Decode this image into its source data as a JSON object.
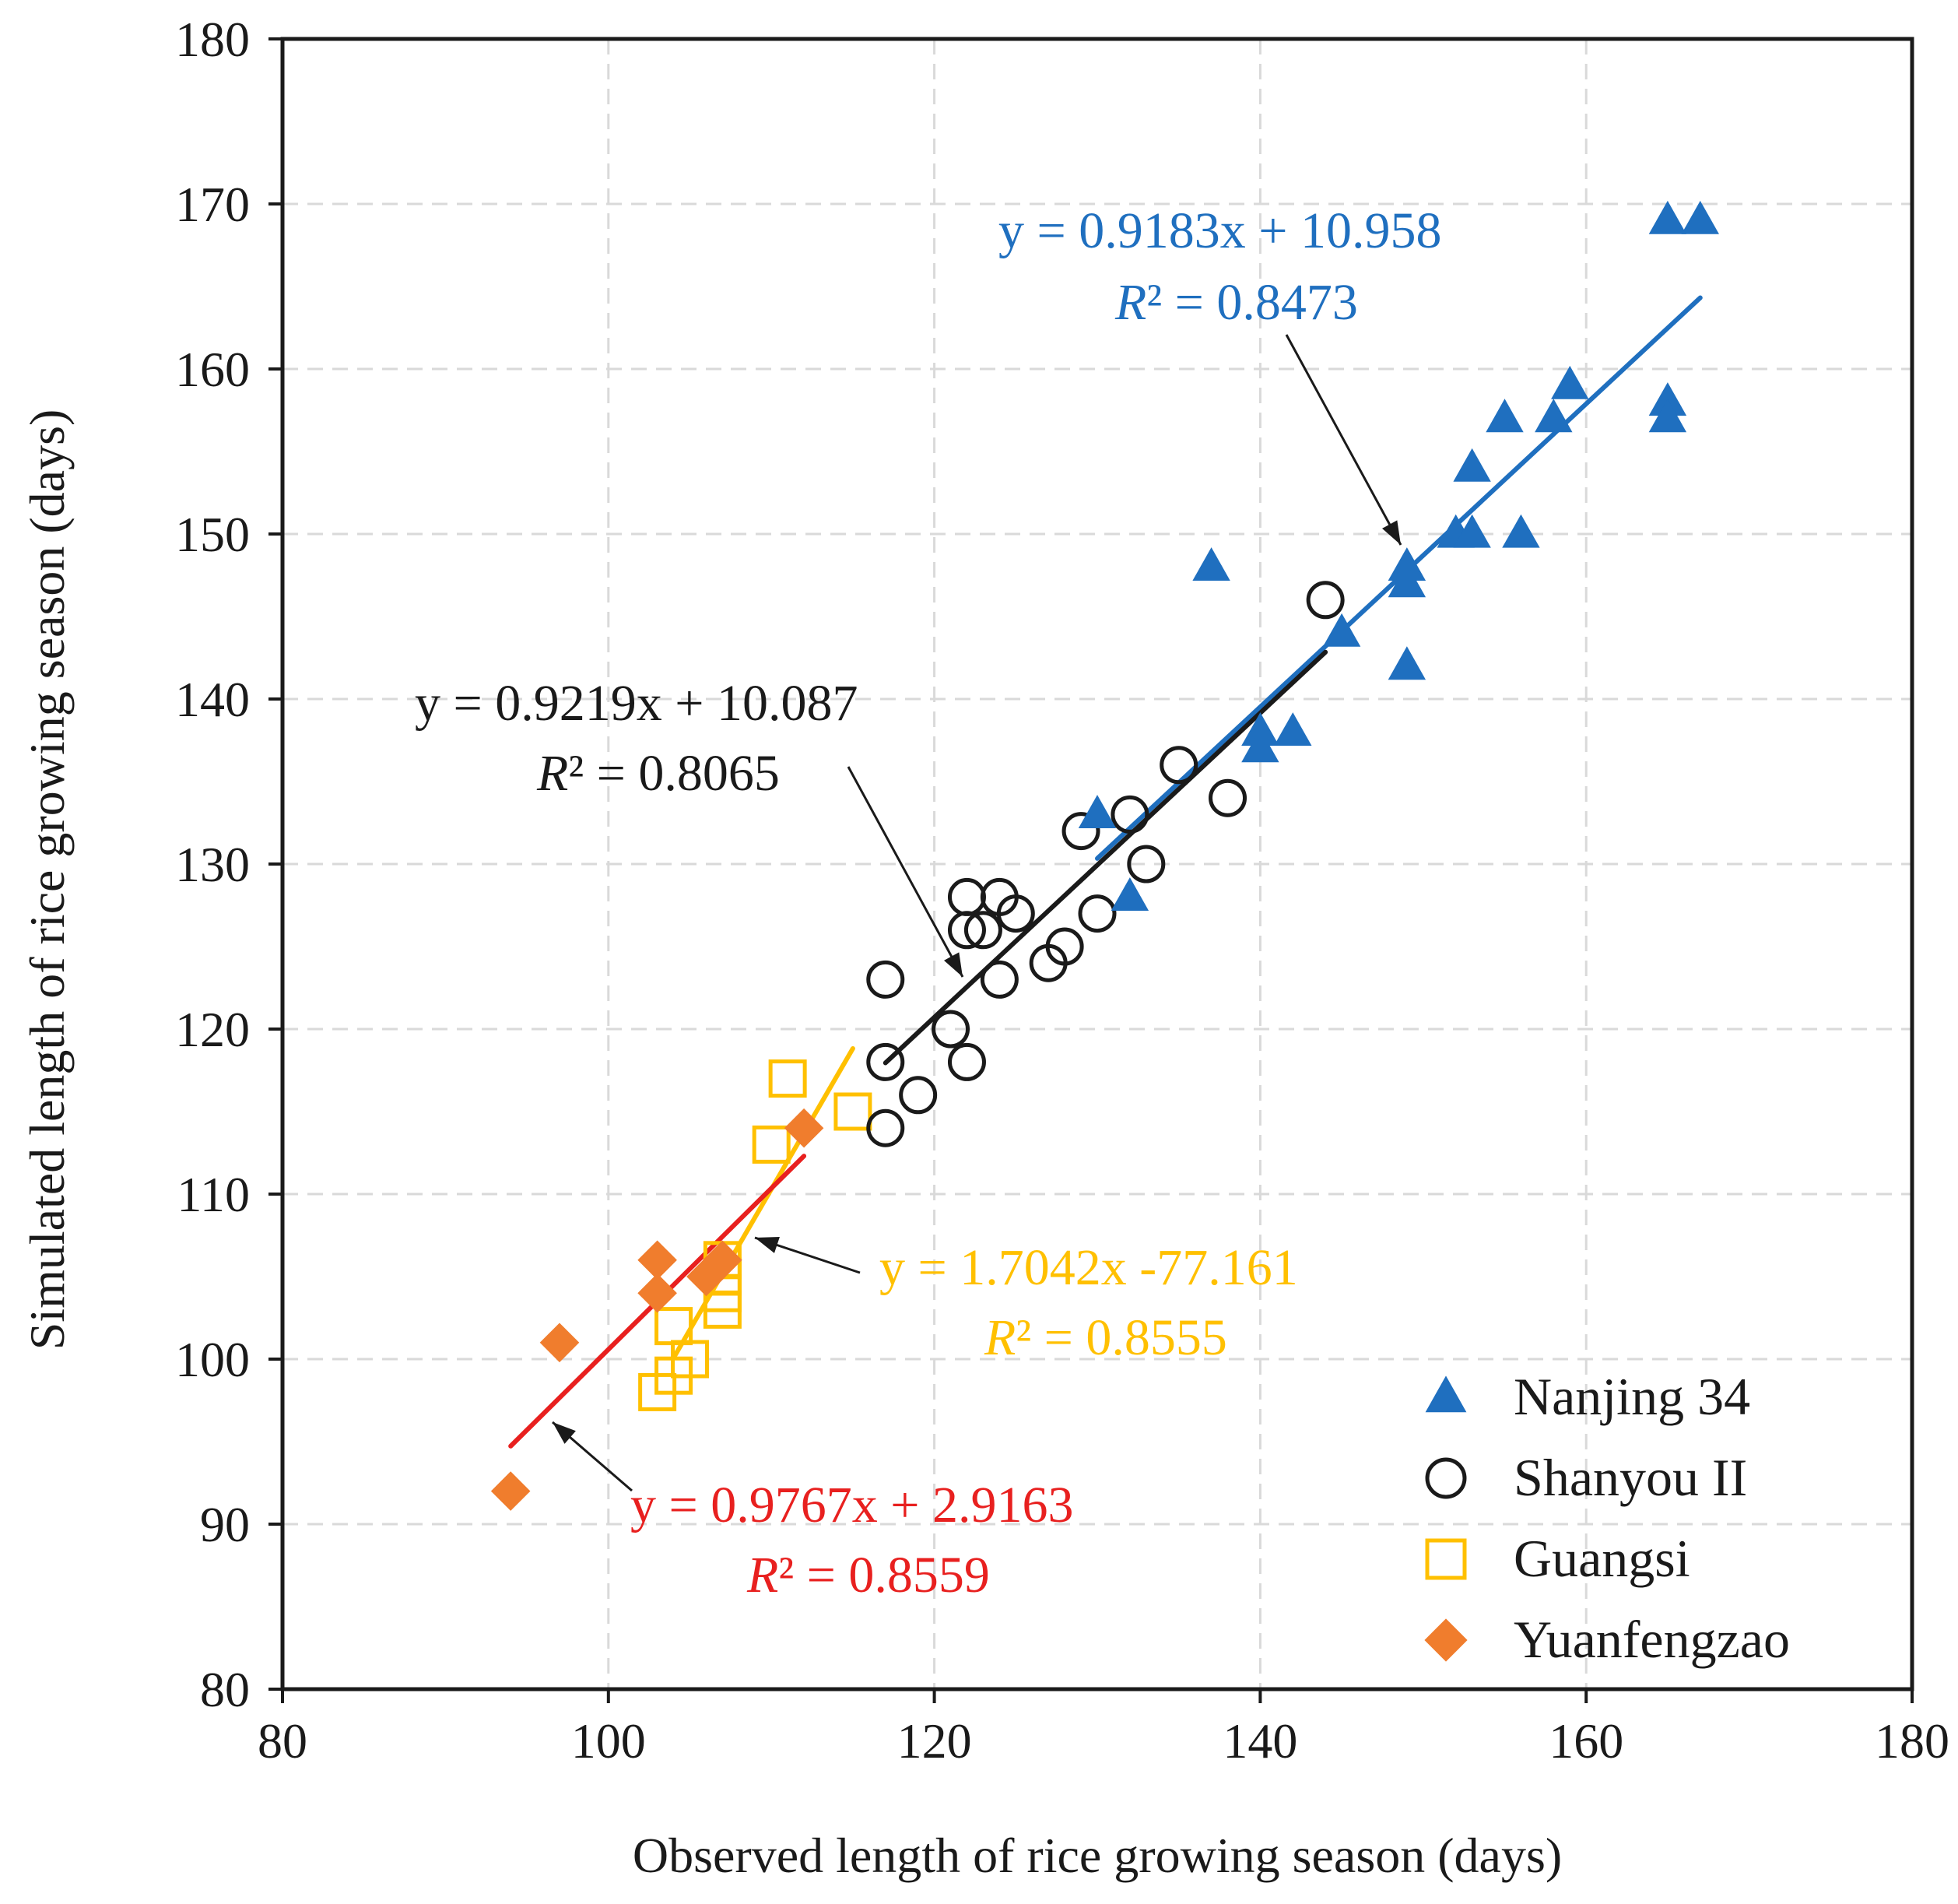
{
  "chart_data": {
    "type": "scatter",
    "title": "",
    "xlabel": "Observed length of rice growing season (days)",
    "ylabel": "Simulated length of rice growing season (days)",
    "xlim": [
      80,
      180
    ],
    "ylim": [
      80,
      180
    ],
    "xticks": [
      80,
      100,
      120,
      140,
      160,
      180
    ],
    "yticks": [
      80,
      90,
      100,
      110,
      120,
      130,
      140,
      150,
      160,
      170,
      180
    ],
    "grid": true,
    "legend_position": "bottom-right",
    "series": [
      {
        "name": "Nanjing 34",
        "marker": "triangle",
        "color": "#1f6fbf",
        "fit": {
          "slope": 0.9183,
          "intercept": 10.958,
          "x_range": [
            130,
            167
          ]
        },
        "equation": "y = 0.9183x  + 10.958",
        "r2_label": "R",
        "r2_value": "² = 0.8473",
        "points": [
          [
            165,
            169
          ],
          [
            167,
            169
          ],
          [
            165,
            158
          ],
          [
            165,
            157
          ],
          [
            159,
            159
          ],
          [
            155,
            157
          ],
          [
            158,
            157
          ],
          [
            153,
            154
          ],
          [
            152,
            150
          ],
          [
            153,
            150
          ],
          [
            156,
            150
          ],
          [
            149,
            148
          ],
          [
            149,
            147
          ],
          [
            149,
            142
          ],
          [
            137,
            148
          ],
          [
            145,
            144
          ],
          [
            140,
            138
          ],
          [
            140,
            137
          ],
          [
            142,
            138
          ],
          [
            130,
            133
          ],
          [
            132,
            128
          ]
        ]
      },
      {
        "name": "Shanyou II",
        "marker": "circle",
        "color": "#1a1a1a",
        "fit": {
          "slope": 0.9219,
          "intercept": 10.087,
          "x_range": [
            117,
            144
          ]
        },
        "equation": "y = 0.9219x  + 10.087",
        "r2_label": "R",
        "r2_value": "² = 0.8065",
        "points": [
          [
            117,
            123
          ],
          [
            117,
            118
          ],
          [
            117,
            114
          ],
          [
            119,
            116
          ],
          [
            121,
            120
          ],
          [
            122,
            118
          ],
          [
            122,
            128
          ],
          [
            122,
            126
          ],
          [
            123,
            126
          ],
          [
            124,
            128
          ],
          [
            124,
            123
          ],
          [
            125,
            127
          ],
          [
            127,
            124
          ],
          [
            128,
            125
          ],
          [
            129,
            132
          ],
          [
            130,
            127
          ],
          [
            132,
            133
          ],
          [
            133,
            130
          ],
          [
            135,
            136
          ],
          [
            138,
            134
          ],
          [
            144,
            146
          ]
        ]
      },
      {
        "name": "Guangsi",
        "marker": "square",
        "color": "#ffc000",
        "fit": {
          "slope": 1.7042,
          "intercept": -77.161,
          "x_range": [
            104,
            115
          ]
        },
        "equation": "y = 1.7042x -77.161",
        "r2_label": "R",
        "r2_value": "² = 0.8555",
        "points": [
          [
            103,
            98
          ],
          [
            104,
            99
          ],
          [
            104,
            102
          ],
          [
            105,
            100
          ],
          [
            107,
            103
          ],
          [
            107,
            104
          ],
          [
            107,
            105
          ],
          [
            107,
            106
          ],
          [
            110,
            113
          ],
          [
            111,
            117
          ],
          [
            115,
            115
          ]
        ]
      },
      {
        "name": "Yuanfengzao",
        "marker": "diamond",
        "color": "#f07d2d",
        "fit": {
          "slope": 0.9767,
          "intercept": 2.9163,
          "x_range": [
            94,
            112
          ]
        },
        "equation": "y = 0.9767x  + 2.9163",
        "r2_label": "R",
        "r2_value": "² = 0.8559",
        "points": [
          [
            94,
            92
          ],
          [
            97,
            101
          ],
          [
            103,
            104
          ],
          [
            103,
            106
          ],
          [
            106,
            105
          ],
          [
            107,
            106
          ],
          [
            112,
            114
          ]
        ]
      }
    ],
    "fit_line_colors": {
      "Nanjing 34": "#1f6fbf",
      "Shanyou II": "#1a1a1a",
      "Guangsi": "#ffc000",
      "Yuanfengzao": "#e8201f"
    },
    "equation_colors": {
      "Nanjing 34": "#1f6fbf",
      "Shanyou II": "#1a1a1a",
      "Guangsi": "#ffc000",
      "Yuanfengzao": "#e8201f"
    }
  }
}
